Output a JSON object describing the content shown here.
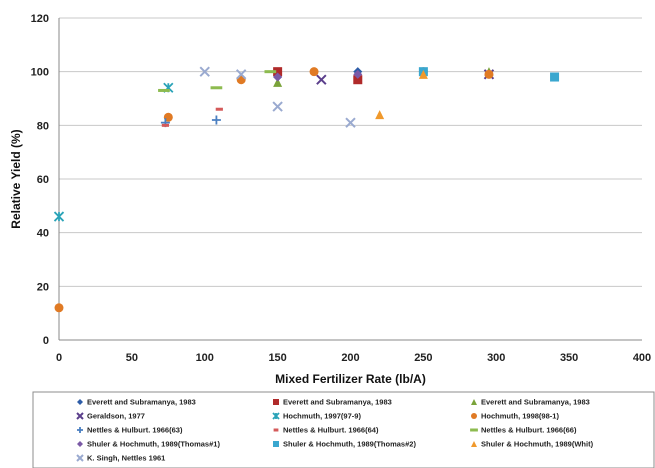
{
  "chart_data": {
    "type": "scatter",
    "title": "",
    "xlabel": "Mixed Fertilizer Rate (lb/A)",
    "ylabel": "Relative Yield (%)",
    "xlim": [
      0,
      400
    ],
    "ylim": [
      0,
      120
    ],
    "x_ticks": [
      0,
      50,
      100,
      150,
      200,
      250,
      300,
      350,
      400
    ],
    "y_ticks": [
      0,
      20,
      40,
      60,
      80,
      100,
      120
    ],
    "grid": "horizontal",
    "legend_position": "bottom",
    "series": [
      {
        "name": "Everett and Subramanya, 1983",
        "marker": "diamond",
        "color": "#2e5da8",
        "x": [
          150,
          205
        ],
        "y": [
          98,
          100
        ]
      },
      {
        "name": "Everett and Subramanya, 1983",
        "marker": "square",
        "color": "#b02a2a",
        "x": [
          150,
          205
        ],
        "y": [
          100,
          97
        ]
      },
      {
        "name": "Everett and Subramanya, 1983",
        "marker": "triangle",
        "color": "#7aa33a",
        "x": [
          150,
          295
        ],
        "y": [
          96,
          100
        ]
      },
      {
        "name": "Geraldson, 1977",
        "marker": "x",
        "color": "#5b3f8c",
        "x": [
          180,
          295
        ],
        "y": [
          97,
          99
        ]
      },
      {
        "name": "Hochmuth, 1997(97-9)",
        "marker": "star",
        "color": "#2aa3b8",
        "x": [
          0,
          75
        ],
        "y": [
          46,
          94
        ]
      },
      {
        "name": "Hochmuth, 1998(98-1)",
        "marker": "circle",
        "color": "#e07a24",
        "x": [
          0,
          75,
          125,
          175,
          250,
          295
        ],
        "y": [
          12,
          83,
          97,
          100,
          100,
          99
        ]
      },
      {
        "name": "Nettles & Hulburt. 1966(63)",
        "marker": "plus",
        "color": "#4a7fc1",
        "x": [
          73,
          108
        ],
        "y": [
          81,
          82
        ]
      },
      {
        "name": "Nettles & Hulburt. 1966(64)",
        "marker": "dash",
        "color": "#d45a5a",
        "x": [
          73,
          110
        ],
        "y": [
          80,
          86
        ]
      },
      {
        "name": "Nettles & Hulburt. 1966(66)",
        "marker": "longdash",
        "color": "#8dbb4f",
        "x": [
          72,
          108,
          145
        ],
        "y": [
          93,
          94,
          100
        ]
      },
      {
        "name": "Shuler & Hochmuth, 1989(Thomas#1)",
        "marker": "diamond",
        "color": "#7b5aa6",
        "x": [
          150,
          205
        ],
        "y": [
          98,
          99
        ]
      },
      {
        "name": "Shuler & Hochmuth, 1989(Thomas#2)",
        "marker": "square",
        "color": "#3aa7cf",
        "x": [
          250,
          340
        ],
        "y": [
          100,
          98
        ]
      },
      {
        "name": "Shuler & Hochmuth, 1989(Whit)",
        "marker": "triangle",
        "color": "#f0992c",
        "x": [
          220,
          250
        ],
        "y": [
          84,
          99
        ]
      },
      {
        "name": "K. Singh, Nettles 1961",
        "marker": "x",
        "color": "#9aaad0",
        "x": [
          100,
          125,
          150,
          200
        ],
        "y": [
          100,
          99,
          87,
          81
        ]
      }
    ]
  }
}
